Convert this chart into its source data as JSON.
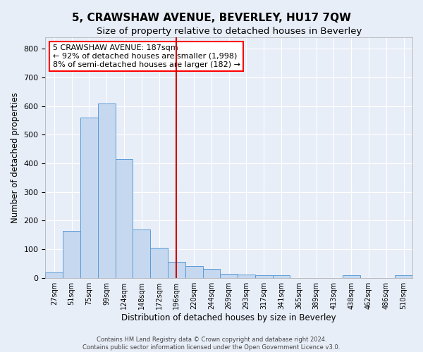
{
  "title": "5, CRAWSHAW AVENUE, BEVERLEY, HU17 7QW",
  "subtitle": "Size of property relative to detached houses in Beverley",
  "xlabel": "Distribution of detached houses by size in Beverley",
  "ylabel": "Number of detached properties",
  "bar_labels": [
    "27sqm",
    "51sqm",
    "75sqm",
    "99sqm",
    "124sqm",
    "148sqm",
    "172sqm",
    "196sqm",
    "220sqm",
    "244sqm",
    "269sqm",
    "293sqm",
    "317sqm",
    "341sqm",
    "365sqm",
    "389sqm",
    "413sqm",
    "438sqm",
    "462sqm",
    "486sqm",
    "510sqm"
  ],
  "bar_values": [
    20,
    165,
    560,
    610,
    415,
    170,
    105,
    55,
    40,
    32,
    15,
    12,
    10,
    8,
    0,
    0,
    0,
    8,
    0,
    0,
    8
  ],
  "bar_color": "#c5d8f0",
  "bar_edge_color": "#5b9bd5",
  "ylim": [
    0,
    840
  ],
  "yticks": [
    0,
    100,
    200,
    300,
    400,
    500,
    600,
    700,
    800
  ],
  "vline_x": 7.0,
  "vline_color": "#cc0000",
  "annotation_lines": [
    "5 CRAWSHAW AVENUE: 187sqm",
    "← 92% of detached houses are smaller (1,998)",
    "8% of semi-detached houses are larger (182) →"
  ],
  "bg_color": "#e8eef8",
  "grid_color": "#ffffff",
  "footer_line1": "Contains HM Land Registry data © Crown copyright and database right 2024.",
  "footer_line2": "Contains public sector information licensed under the Open Government Licence v3.0.",
  "title_fontsize": 11,
  "subtitle_fontsize": 9.5
}
